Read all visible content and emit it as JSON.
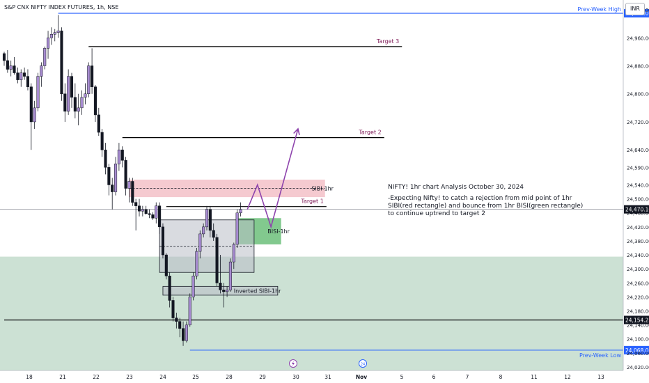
{
  "header": {
    "symbol": "S&P CNX NIFTY INDEX FUTURES, 1h, NSE"
  },
  "currency_button": "INR",
  "colors": {
    "bull": "#a78bd0",
    "bear": "#131722",
    "level_blue": "#2962ff",
    "target_purple": "#801f5a",
    "arrow": "#8e44ad"
  },
  "chart_data": {
    "type": "candlestick",
    "x_ticks": [
      "18",
      "21",
      "22",
      "23",
      "24",
      "25",
      "28",
      "29",
      "30",
      "31",
      "Nov",
      "5",
      "6",
      "7",
      "8",
      "11",
      "12",
      "13"
    ],
    "y_ticks": [
      24020,
      24060,
      24100,
      24140,
      24180,
      24220,
      24260,
      24300,
      24340,
      24380,
      24420,
      24460,
      24500,
      24540,
      24590,
      24640,
      24720,
      24800,
      24880,
      24960,
      25040
    ],
    "ylim": [
      24010,
      25060
    ],
    "candles": [
      [
        24915,
        24920,
        24880,
        24895
      ],
      [
        24895,
        24925,
        24860,
        24870
      ],
      [
        24870,
        24895,
        24850,
        24880
      ],
      [
        24880,
        24905,
        24855,
        24860
      ],
      [
        24860,
        24875,
        24830,
        24840
      ],
      [
        24840,
        24870,
        24820,
        24860
      ],
      [
        24860,
        24875,
        24840,
        24850
      ],
      [
        24850,
        24870,
        24810,
        24820
      ],
      [
        24820,
        24830,
        24640,
        24720
      ],
      [
        24720,
        24780,
        24700,
        24760
      ],
      [
        24760,
        24860,
        24750,
        24850
      ],
      [
        24850,
        24890,
        24820,
        24880
      ],
      [
        24880,
        24935,
        24870,
        24930
      ],
      [
        24930,
        24980,
        24900,
        24960
      ],
      [
        24960,
        24990,
        24940,
        24970
      ],
      [
        24970,
        24985,
        24950,
        24975
      ],
      [
        24975,
        25025,
        24960,
        24980
      ],
      [
        24980,
        24990,
        24780,
        24800
      ],
      [
        24800,
        24830,
        24720,
        24750
      ],
      [
        24750,
        24870,
        24740,
        24850
      ],
      [
        24850,
        24860,
        24760,
        24790
      ],
      [
        24790,
        24830,
        24730,
        24750
      ],
      [
        24750,
        24800,
        24710,
        24760
      ],
      [
        24760,
        24810,
        24740,
        24790
      ],
      [
        24790,
        24830,
        24770,
        24800
      ],
      [
        24800,
        24890,
        24790,
        24880
      ],
      [
        24880,
        24930,
        24800,
        24820
      ],
      [
        24820,
        24825,
        24720,
        24740
      ],
      [
        24740,
        24760,
        24680,
        24690
      ],
      [
        24690,
        24700,
        24620,
        24640
      ],
      [
        24640,
        24660,
        24570,
        24590
      ],
      [
        24590,
        24600,
        24510,
        24540
      ],
      [
        24540,
        24560,
        24470,
        24520
      ],
      [
        24520,
        24620,
        24510,
        24600
      ],
      [
        24600,
        24660,
        24580,
        24640
      ],
      [
        24640,
        24650,
        24590,
        24610
      ],
      [
        24610,
        24620,
        24510,
        24530
      ],
      [
        24530,
        24560,
        24490,
        24550
      ],
      [
        24550,
        24560,
        24480,
        24490
      ],
      [
        24490,
        24500,
        24410,
        24480
      ],
      [
        24480,
        24500,
        24450,
        24465
      ],
      [
        24465,
        24480,
        24450,
        24470
      ],
      [
        24470,
        24480,
        24455,
        24458
      ],
      [
        24458,
        24470,
        24445,
        24455
      ],
      [
        24455,
        24462,
        24440,
        24445
      ],
      [
        24445,
        24490,
        24430,
        24480
      ],
      [
        24480,
        24490,
        24400,
        24420
      ],
      [
        24420,
        24430,
        24330,
        24340
      ],
      [
        24340,
        24345,
        24270,
        24280
      ],
      [
        24280,
        24290,
        24190,
        24210
      ],
      [
        24210,
        24220,
        24150,
        24160
      ],
      [
        24160,
        24175,
        24130,
        24150
      ],
      [
        24150,
        24160,
        24105,
        24130
      ],
      [
        24130,
        24150,
        24080,
        24095
      ],
      [
        24095,
        24150,
        24090,
        24140
      ],
      [
        24140,
        24230,
        24135,
        24220
      ],
      [
        24220,
        24290,
        24210,
        24280
      ],
      [
        24280,
        24360,
        24270,
        24350
      ],
      [
        24350,
        24410,
        24330,
        24400
      ],
      [
        24400,
        24430,
        24390,
        24420
      ],
      [
        24420,
        24480,
        24410,
        24470
      ],
      [
        24470,
        24480,
        24390,
        24410
      ],
      [
        24410,
        24430,
        24380,
        24390
      ],
      [
        24390,
        24400,
        24250,
        24260
      ],
      [
        24260,
        24340,
        24230,
        24240
      ],
      [
        24240,
        24260,
        24190,
        24235
      ],
      [
        24235,
        24250,
        24220,
        24240
      ],
      [
        24240,
        24330,
        24235,
        24320
      ],
      [
        24320,
        24375,
        24300,
        24370
      ],
      [
        24370,
        24470,
        24360,
        24460
      ],
      [
        24460,
        24490,
        24450,
        24470
      ]
    ],
    "levels": [
      {
        "label": "Prev-Week High",
        "value": 25030,
        "color": "#2962ff",
        "x0": 16,
        "tag": "25,030.00"
      },
      {
        "label": "Target 3",
        "value": 24935,
        "color": "#000000",
        "x0": 25
      },
      {
        "label": "Target 2",
        "value": 24675,
        "color": "#000000",
        "x0": 35
      },
      {
        "label": "Target 1",
        "value": 24478,
        "color": "#000000",
        "x0": 48
      },
      {
        "label": "",
        "value": 24154.25,
        "color": "#000000",
        "x0": 0,
        "tag": "24,154.25"
      },
      {
        "label": "Prev-Week Low",
        "value": 24068,
        "color": "#2962ff",
        "x0": 55,
        "tag": "24,068.00"
      }
    ],
    "current_price": {
      "value": 24470.1,
      "tag": "24,470.10"
    },
    "zones": [
      {
        "label": "SIBI-1hr",
        "top": 24555,
        "bottom": 24505,
        "x0": 37,
        "x1": 95,
        "color": "red"
      },
      {
        "label": "BISI-1hr",
        "top": 24445,
        "bottom": 24370,
        "x0": 69,
        "x1": 82,
        "color": "green"
      },
      {
        "label": "",
        "top": 24440,
        "bottom": 24290,
        "x0": 46,
        "x1": 74,
        "color": "grey"
      },
      {
        "label": "Inverted SIBI-1hr",
        "top": 24250,
        "bottom": 24225,
        "x0": 47,
        "x1": 81,
        "color": "grey"
      }
    ],
    "demand_band": {
      "top": 24335,
      "bottom": 24010
    },
    "arrow_path": [
      [
        72,
        24470
      ],
      [
        75,
        24540
      ],
      [
        79,
        24420
      ],
      [
        87,
        24700
      ]
    ],
    "date_markers": [
      {
        "x": 72,
        "icon": "lightning-icon"
      },
      {
        "x": 90,
        "icon": "arrow-icon",
        "label": "24"
      }
    ]
  },
  "annotation": {
    "title": "NIFTY! 1hr chart Analysis October 30, 2024",
    "body": "-Expecting Nifty! to catch a rejection from mid point of 1hr SIBI(red rectangle) and bounce from 1hr BISI(green rectangle) to continue uptrend to target 2"
  }
}
